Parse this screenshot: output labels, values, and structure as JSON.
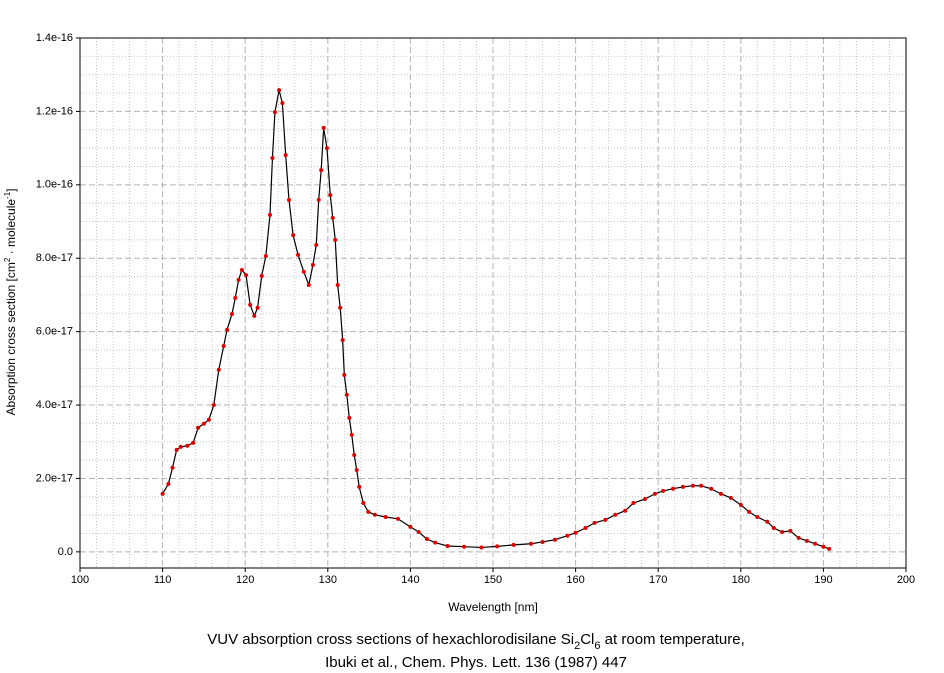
{
  "chart_data": {
    "type": "line",
    "x_label": "Wavelength [nm]",
    "y_label_parts": [
      "Absorption cross section [cm",
      "2",
      " · molecule",
      "-1",
      "]"
    ],
    "caption_line1_parts": [
      "VUV absorption cross sections of hexachlorodisilane Si",
      "2",
      "Cl",
      "6",
      " at room temperature,"
    ],
    "caption_line2": "Ibuki et al., Chem. Phys. Lett. 136 (1987) 447",
    "xlim": [
      100,
      200
    ],
    "xticks": [
      100,
      110,
      120,
      130,
      140,
      150,
      160,
      170,
      180,
      190,
      200
    ],
    "ylim": [
      -4.4e-18,
      1.4e-16
    ],
    "yticks": [
      {
        "value": 0,
        "label": "0.0"
      },
      {
        "value": 2e-17,
        "label": "2.0e-17"
      },
      {
        "value": 4e-17,
        "label": "4.0e-17"
      },
      {
        "value": 6e-17,
        "label": "6.0e-17"
      },
      {
        "value": 8e-17,
        "label": "8.0e-17"
      },
      {
        "value": 1e-16,
        "label": "1.0e-16"
      },
      {
        "value": 1.2e-16,
        "label": "1.2e-16"
      },
      {
        "value": 1.4e-16,
        "label": "1.4e-16"
      }
    ],
    "grid": true,
    "minor_grid": true,
    "line_color": "#000000",
    "marker_color": "#e00000",
    "x": [
      110,
      110.7,
      111.2,
      111.7,
      112.2,
      113,
      113.7,
      114.3,
      115,
      115.6,
      116.2,
      116.8,
      117.4,
      117.8,
      118.4,
      118.8,
      119.2,
      119.6,
      120.1,
      120.6,
      121.1,
      121.5,
      122,
      122.5,
      123,
      123.3,
      123.6,
      124.1,
      124.5,
      124.9,
      125.3,
      125.8,
      126.4,
      127.1,
      127.7,
      128.2,
      128.6,
      128.9,
      129.2,
      129.5,
      129.9,
      130.3,
      130.6,
      130.9,
      131.2,
      131.5,
      131.8,
      132,
      132.3,
      132.6,
      132.9,
      133.2,
      133.5,
      133.8,
      134.3,
      134.9,
      135.7,
      137,
      138.5,
      140,
      141,
      142,
      143,
      144.5,
      146.5,
      148.6,
      150.5,
      152.5,
      154.6,
      156,
      157.5,
      159,
      160,
      161.2,
      162.3,
      163.6,
      164.8,
      166,
      167,
      168.4,
      169.6,
      170.6,
      171.8,
      173,
      174.2,
      175.2,
      176.4,
      177.6,
      178.8,
      180,
      181,
      182,
      183.2,
      184,
      185,
      186,
      187,
      188,
      189,
      190,
      190.7
    ],
    "values": [
      1.58e-17,
      1.85e-17,
      2.29e-17,
      2.78e-17,
      2.86e-17,
      2.89e-17,
      2.97e-17,
      3.38e-17,
      3.49e-17,
      3.6e-17,
      4e-17,
      4.96e-17,
      5.61e-17,
      6.05e-17,
      6.48e-17,
      6.92e-17,
      7.41e-17,
      7.68e-17,
      7.54e-17,
      6.73e-17,
      6.43e-17,
      6.65e-17,
      7.52e-17,
      8.06e-17,
      9.18e-17,
      1.073e-16,
      1.198e-16,
      1.258e-16,
      1.223e-16,
      1.081e-16,
      9.59e-17,
      8.63e-17,
      8.09e-17,
      7.63e-17,
      7.27e-17,
      7.82e-17,
      8.36e-17,
      9.59e-17,
      1.04e-16,
      1.155e-16,
      1.1e-16,
      9.72e-17,
      9.1e-17,
      8.5e-17,
      7.27e-17,
      6.65e-17,
      5.77e-17,
      4.82e-17,
      4.28e-17,
      3.65e-17,
      3.19e-17,
      2.64e-17,
      2.23e-17,
      1.77e-17,
      1.33e-17,
      1.09e-17,
      1.01e-17,
      9.5e-18,
      9e-18,
      6.8e-18,
      5.4e-18,
      3.5e-18,
      2.5e-18,
      1.6e-18,
      1.4e-18,
      1.2e-18,
      1.5e-18,
      1.9e-18,
      2.2e-18,
      2.7e-18,
      3.3e-18,
      4.4e-18,
      5.2e-18,
      6.5e-18,
      7.9e-18,
      8.7e-18,
      1.01e-17,
      1.12e-17,
      1.33e-17,
      1.44e-17,
      1.58e-17,
      1.66e-17,
      1.72e-17,
      1.77e-17,
      1.8e-17,
      1.8e-17,
      1.72e-17,
      1.58e-17,
      1.47e-17,
      1.28e-17,
      1.09e-17,
      9.5e-18,
      8.2e-18,
      6.5e-18,
      5.4e-18,
      5.7e-18,
      3.8e-18,
      3e-18,
      2.2e-18,
      1.4e-18,
      8e-19
    ]
  }
}
